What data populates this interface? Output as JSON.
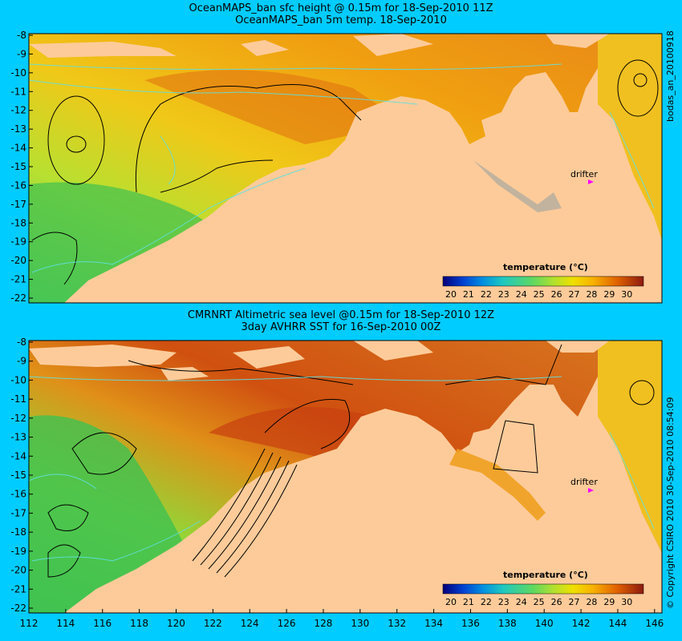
{
  "panels": [
    {
      "title_line1": "OceanMAPS_ban sfc height @ 0.15m for 18-Sep-2010 11Z",
      "title_line2": "OceanMAPS_ban 5m temp. 18-Sep-2010",
      "side_label": "bodas_an_20100918",
      "drifter_label": "drifter",
      "legend_title": "temperature (°C)"
    },
    {
      "title_line1": "CMRNRT Altimetric sea level  @0.15m  for 18-Sep-2010 12Z",
      "title_line2": "3day AVHRR SST for 16-Sep-2010 00Z",
      "side_label": "© Copyright CSIRO 2010   30-Sep-2010 08:54:09",
      "drifter_label": "drifter",
      "legend_title": "temperature (°C)"
    }
  ],
  "y_ticks": [
    "-8",
    "-9",
    "-10",
    "-11",
    "-12",
    "-13",
    "-14",
    "-15",
    "-16",
    "-17",
    "-18",
    "-19",
    "-20",
    "-21",
    "-22"
  ],
  "x_ticks": [
    "112",
    "114",
    "116",
    "118",
    "120",
    "122",
    "124",
    "126",
    "128",
    "130",
    "132",
    "134",
    "136",
    "138",
    "140",
    "142",
    "144",
    "146"
  ],
  "legend_ticks": [
    "20",
    "21",
    "22",
    "23",
    "24",
    "25",
    "26",
    "27",
    "28",
    "29",
    "30"
  ],
  "colors": {
    "background": "#00ccff",
    "land": "#fdcb9a",
    "drifter": "#ff00ff",
    "colormap": [
      "#00007a",
      "#0030c8",
      "#0080e8",
      "#20c0d0",
      "#40d080",
      "#80e040",
      "#c8e820",
      "#f0e000",
      "#f8b000",
      "#e87000",
      "#c84010",
      "#8c1a10"
    ]
  }
}
